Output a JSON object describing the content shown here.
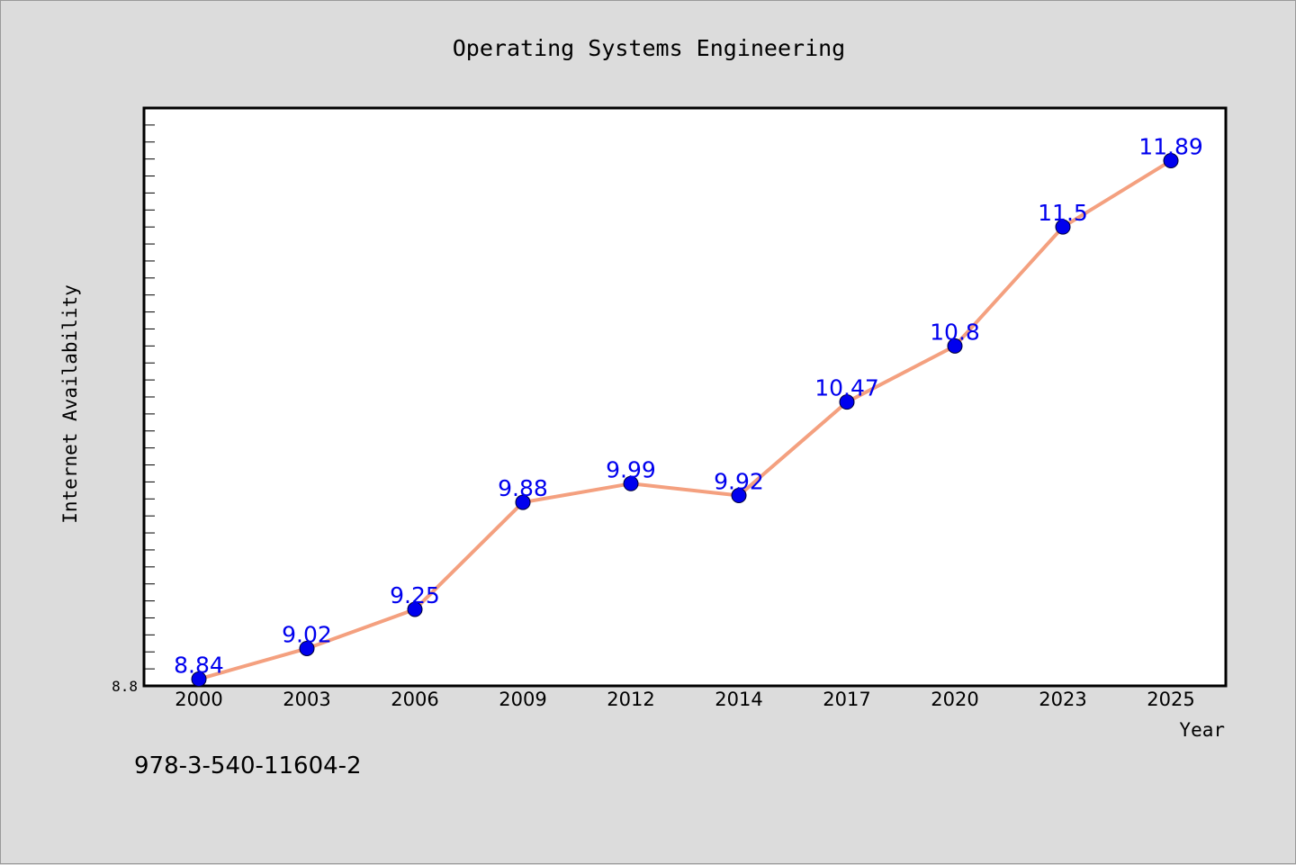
{
  "footnote": "978-3-540-11604-2",
  "colors": {
    "background": "#dcdcdc",
    "plot_background": "#ffffff",
    "line": "#f4a07f",
    "marker": "#0000ee",
    "data_label": "#0000ee"
  },
  "chart_data": {
    "type": "line",
    "title": "Operating Systems Engineering",
    "xlabel": "Year",
    "ylabel": "Internet Availability",
    "categories": [
      "2000",
      "2003",
      "2006",
      "2009",
      "2012",
      "2014",
      "2017",
      "2020",
      "2023",
      "2025"
    ],
    "series": [
      {
        "values": [
          8.84,
          9.02,
          9.25,
          9.88,
          9.99,
          9.92,
          10.47,
          10.8,
          11.5,
          11.89
        ]
      }
    ],
    "data_labels": [
      "8.84",
      "9.02",
      "9.25",
      "9.88",
      "9.99",
      "9.92",
      "10.47",
      "10.8",
      "11.5",
      "11.89"
    ],
    "ylim": [
      8.8,
      12.2
    ],
    "yticks_labeled": [
      "8.8"
    ],
    "grid": false,
    "legend": "none"
  }
}
